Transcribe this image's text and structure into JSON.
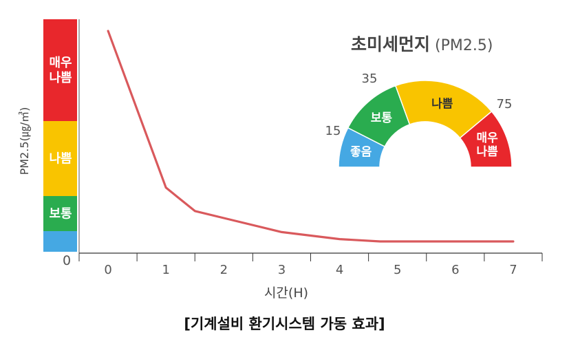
{
  "caption": "[기계설비 환기시스템 가동 효과]",
  "colors": {
    "line": "#d9595c",
    "very_bad": "#e8272c",
    "bad": "#f9c400",
    "normal": "#2aac4f",
    "good": "#45a8e3"
  },
  "chart_data": {
    "type": "line",
    "xlabel": "시간(H)",
    "ylabel": "PM2.5(㎍/㎥)",
    "x_ticks": [
      "0",
      "1",
      "2",
      "3",
      "4",
      "5",
      "6",
      "7"
    ],
    "xlim": [
      -0.5,
      7.5
    ],
    "y_zero_label": "0",
    "ylim": [
      0,
      100
    ],
    "series": [
      {
        "x": [
          0,
          1,
          1.5,
          2,
          3,
          4,
          4.7,
          5,
          6,
          7
        ],
        "y": [
          95,
          28,
          18,
          15,
          9,
          6,
          5,
          5,
          5,
          5
        ]
      }
    ],
    "bands": [
      {
        "label": "매우\n나쁨",
        "from": 75,
        "to": 100,
        "color": "#e8272c"
      },
      {
        "label": "나쁨",
        "from": 35,
        "to": 75,
        "color": "#f9c400"
      },
      {
        "label": "보통",
        "from": 15,
        "to": 35,
        "color": "#2aac4f"
      },
      {
        "label": "",
        "from": 0,
        "to": 15,
        "color": "#45a8e3"
      }
    ],
    "gauge": {
      "title_main": "초미세먼지",
      "title_sub": "(PM2.5)",
      "thresholds": [
        "15",
        "35",
        "75"
      ],
      "segments": [
        {
          "label": "좋음",
          "color": "#45a8e3"
        },
        {
          "label": "보통",
          "color": "#2aac4f"
        },
        {
          "label": "나쁨",
          "color": "#f9c400"
        },
        {
          "label": "매우\n나쁨",
          "color": "#e8272c"
        }
      ]
    }
  }
}
